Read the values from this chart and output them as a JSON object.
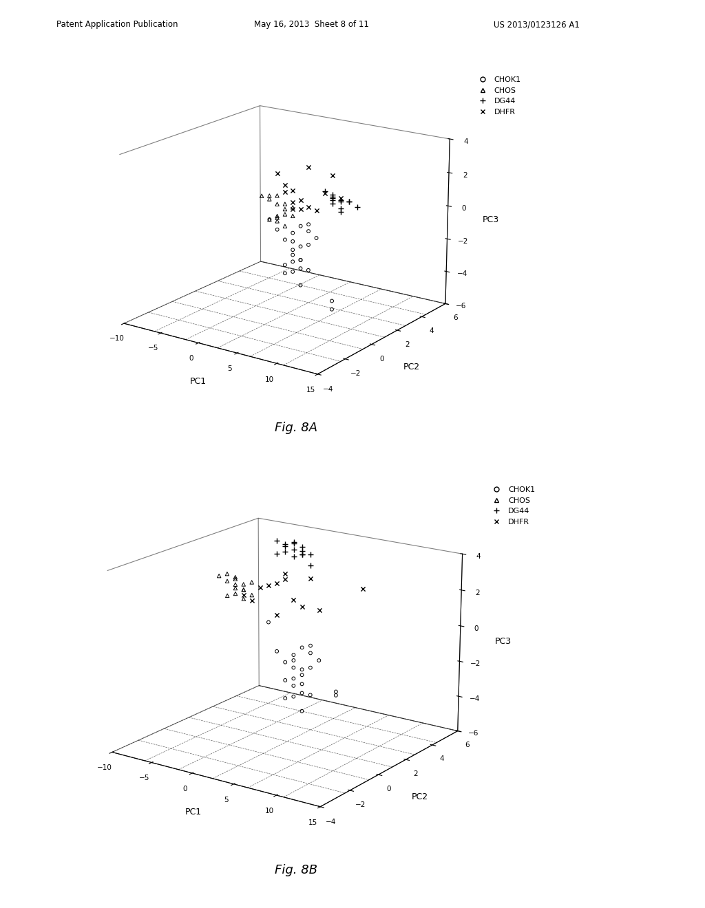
{
  "header_left": "Patent Application Publication",
  "header_center": "May 16, 2013  Sheet 8 of 11",
  "header_right": "US 2013/0123126 A1",
  "fig_a_label": "Fig. 8A",
  "fig_b_label": "Fig. 8B",
  "xlabel": "PC1",
  "ylabel": "PC2",
  "zlabel": "PC3",
  "pc1_lim": [
    -10,
    15
  ],
  "pc2_lim": [
    -4,
    6
  ],
  "pc3_lim": [
    -6,
    4
  ],
  "pc1_ticks": [
    -10,
    -5,
    0,
    5,
    10,
    15
  ],
  "pc2_ticks": [
    -4,
    -2,
    0,
    2,
    4,
    6
  ],
  "pc3_ticks": [
    -6,
    -4,
    -2,
    0,
    2,
    4
  ],
  "background_color": "#ffffff",
  "CHOK1_8A": {
    "pc1": [
      2,
      3,
      4,
      5,
      6,
      4,
      5,
      6,
      7,
      5,
      4,
      6,
      7,
      5,
      6,
      7,
      8,
      10,
      5,
      6,
      10,
      5,
      6,
      7
    ],
    "pc2": [
      0,
      0,
      0,
      0,
      0,
      0,
      0,
      0,
      0,
      0,
      0,
      0,
      0,
      0,
      0,
      0,
      0,
      0,
      0,
      0,
      0,
      0,
      0,
      0
    ],
    "pc3": [
      0.0,
      -0.5,
      -1.0,
      -1.5,
      -2.0,
      -2.5,
      -1.0,
      -2.0,
      -2.5,
      -2.8,
      -3.0,
      -3.5,
      0.2,
      -0.5,
      0.0,
      -0.2,
      -0.5,
      -4.5,
      -2.2,
      -2.5,
      -4.0,
      -1.8,
      -1.2,
      -1.0
    ]
  },
  "CHOS_8A": {
    "pc1": [
      1,
      2,
      3,
      4,
      5,
      2,
      3,
      4,
      3,
      2,
      3,
      4,
      5,
      4,
      3
    ],
    "pc2": [
      0,
      0,
      0,
      0,
      0,
      0,
      0,
      0,
      0,
      0,
      0,
      0,
      0,
      0,
      0
    ],
    "pc3": [
      1.3,
      1.2,
      1.0,
      0.8,
      1.0,
      1.4,
      1.5,
      0.5,
      0.2,
      0.0,
      0.0,
      -0.2,
      0.5,
      1.1,
      0.3
    ]
  },
  "DG44_8A": {
    "pc1": [
      10,
      11,
      12,
      13,
      10,
      11,
      12,
      11,
      10,
      11,
      10,
      9,
      10
    ],
    "pc2": [
      0,
      0,
      0,
      0,
      0,
      0,
      0,
      0,
      0,
      0,
      0,
      0,
      0
    ],
    "pc3": [
      2.0,
      2.0,
      2.0,
      1.8,
      2.2,
      1.9,
      2.0,
      1.5,
      1.9,
      1.3,
      2.1,
      2.3,
      1.7
    ]
  },
  "DHFR_8A": {
    "pc1": [
      3,
      4,
      5,
      6,
      7,
      8,
      4,
      5,
      6,
      9,
      10,
      11,
      5,
      7
    ],
    "pc2": [
      0,
      0,
      0,
      0,
      0,
      0,
      0,
      0,
      0,
      0,
      0,
      0,
      0,
      0
    ],
    "pc3": [
      2.8,
      2.2,
      2.0,
      1.5,
      1.2,
      1.1,
      1.8,
      1.3,
      1.0,
      2.2,
      3.3,
      2.1,
      0.9,
      3.5
    ]
  },
  "CHOK1_8B": {
    "pc1": [
      2,
      3,
      4,
      5,
      6,
      4,
      5,
      6,
      7,
      5,
      4,
      6,
      7,
      5,
      6,
      7,
      8,
      10,
      5,
      6,
      10,
      5,
      6,
      7
    ],
    "pc2": [
      0,
      0,
      0,
      0,
      0,
      0,
      0,
      0,
      0,
      0,
      0,
      0,
      0,
      0,
      0,
      0,
      0,
      0,
      0,
      0,
      0,
      0,
      0,
      0
    ],
    "pc3": [
      1.0,
      -0.5,
      -1.0,
      -1.2,
      -1.5,
      -2.0,
      -0.8,
      -2.0,
      -2.5,
      -2.8,
      -3.0,
      -3.5,
      0.2,
      -0.5,
      0.0,
      -0.2,
      -0.5,
      -2.0,
      -2.2,
      -2.5,
      -2.2,
      -1.8,
      -1.2,
      -1.0
    ]
  },
  "CHOS_8B": {
    "pc1": [
      -4,
      -3,
      -2,
      -1,
      0,
      -3,
      -2,
      -1,
      -2,
      -3,
      -2,
      -1,
      0,
      -1,
      -2
    ],
    "pc2": [
      0,
      0,
      0,
      0,
      0,
      0,
      0,
      0,
      0,
      0,
      0,
      0,
      0,
      0,
      0
    ],
    "pc3": [
      3.0,
      3.2,
      3.0,
      2.8,
      3.0,
      2.8,
      2.7,
      2.5,
      2.2,
      2.0,
      2.5,
      2.0,
      2.3,
      2.5,
      3.1
    ]
  },
  "DG44_8B": {
    "pc1": [
      3,
      4,
      5,
      6,
      7,
      3,
      4,
      5,
      6,
      7,
      4,
      5,
      6,
      5,
      6
    ],
    "pc2": [
      0,
      0,
      0,
      0,
      0,
      0,
      0,
      0,
      0,
      0,
      0,
      0,
      0,
      0,
      0
    ],
    "pc3": [
      5.5,
      5.3,
      5.2,
      5.0,
      5.1,
      4.8,
      5.4,
      5.5,
      5.2,
      4.5,
      5.0,
      5.6,
      5.4,
      4.8,
      5.0
    ]
  },
  "DHFR_8B": {
    "pc1": [
      -1,
      0,
      1,
      2,
      3,
      4,
      5,
      6,
      7,
      8,
      13,
      3,
      4
    ],
    "pc2": [
      0,
      0,
      0,
      0,
      0,
      0,
      0,
      0,
      0,
      0,
      0,
      0,
      0
    ],
    "pc3": [
      2.2,
      2.0,
      2.8,
      3.0,
      3.2,
      3.8,
      2.5,
      2.2,
      3.8,
      2.2,
      3.8,
      1.5,
      3.5
    ]
  }
}
